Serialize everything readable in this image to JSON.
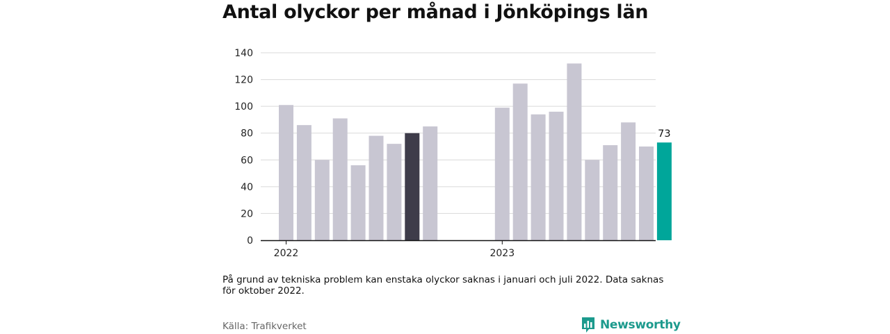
{
  "title": "Antal olyckor per månad i Jönköpings län",
  "note": "På grund av tekniska problem kan enstaka olyckor saknas i januari och juli 2022. Data saknas för oktober 2022.",
  "source": "Källa: Trafikverket",
  "brand": {
    "name": "Newsworthy",
    "color": "#1c9a8d"
  },
  "chart_data": {
    "type": "bar",
    "title": "Antal olyckor per månad i Jönköpings län",
    "xlabel": "",
    "ylabel": "",
    "ylim": [
      0,
      140
    ],
    "yticks": [
      0,
      20,
      40,
      60,
      80,
      100,
      120,
      140
    ],
    "grid": true,
    "x_tick_labels": [
      {
        "label": "2022",
        "category": "2022-01"
      },
      {
        "label": "2023",
        "category": "2023-01"
      }
    ],
    "categories": [
      "2022-01",
      "2022-02",
      "2022-03",
      "2022-04",
      "2022-05",
      "2022-06",
      "2022-07",
      "2022-08",
      "2022-09",
      "2022-10",
      "2022-11",
      "2022-12",
      "2023-01",
      "2023-02",
      "2023-03",
      "2023-04",
      "2023-05",
      "2023-06",
      "2023-07",
      "2023-08",
      "2023-09",
      "2023-10",
      "2023-11",
      "2023-12"
    ],
    "values": [
      101,
      86,
      60,
      91,
      56,
      78,
      72,
      80,
      85,
      null,
      null,
      null,
      99,
      117,
      94,
      96,
      132,
      60,
      71,
      88,
      70,
      73,
      null,
      null
    ],
    "colors": {
      "default": "#c8c6d2",
      "highlight_dark": "#3e3c4a",
      "highlight_latest": "#00a69a"
    },
    "highlights": [
      {
        "category": "2022-08",
        "color": "highlight_dark"
      },
      {
        "category": "2023-10",
        "color": "highlight_latest",
        "label": "73"
      }
    ]
  }
}
